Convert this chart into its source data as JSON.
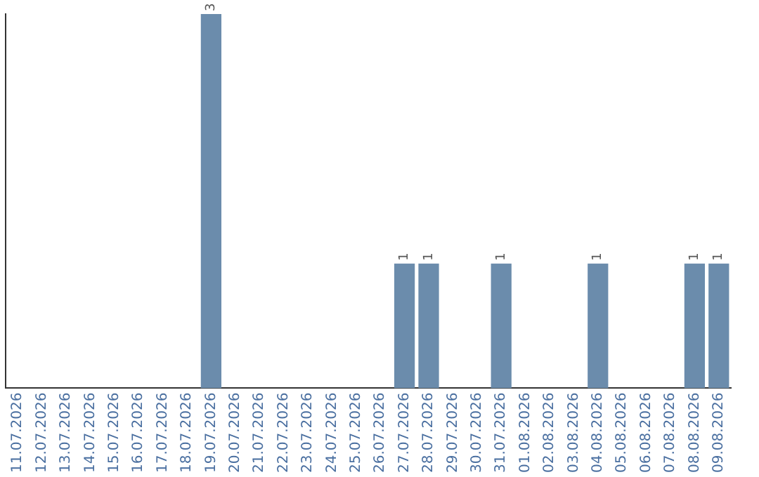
{
  "chart_data": {
    "type": "bar",
    "categories": [
      "11.07.2026",
      "12.07.2026",
      "13.07.2026",
      "14.07.2026",
      "15.07.2026",
      "16.07.2026",
      "17.07.2026",
      "18.07.2026",
      "19.07.2026",
      "20.07.2026",
      "21.07.2026",
      "22.07.2026",
      "23.07.2026",
      "24.07.2026",
      "25.07.2026",
      "26.07.2026",
      "27.07.2026",
      "28.07.2026",
      "29.07.2026",
      "30.07.2026",
      "31.07.2026",
      "01.08.2026",
      "02.08.2026",
      "03.08.2026",
      "04.08.2026",
      "05.08.2026",
      "06.08.2026",
      "07.08.2026",
      "08.08.2026",
      "09.08.2026"
    ],
    "values": [
      0,
      0,
      0,
      0,
      0,
      0,
      0,
      0,
      3,
      0,
      0,
      0,
      0,
      0,
      0,
      0,
      1,
      1,
      0,
      0,
      1,
      0,
      0,
      0,
      1,
      0,
      0,
      0,
      1,
      1
    ],
    "value_labels": [
      null,
      null,
      null,
      null,
      null,
      null,
      null,
      null,
      "3",
      null,
      null,
      null,
      null,
      null,
      null,
      null,
      "1",
      "1",
      null,
      null,
      "1",
      null,
      null,
      null,
      "1",
      null,
      null,
      null,
      "1",
      "1"
    ],
    "color": "#6b8cac",
    "ylim": [
      0,
      3
    ],
    "tick_labels": "x",
    "grid": false,
    "legend": false
  }
}
